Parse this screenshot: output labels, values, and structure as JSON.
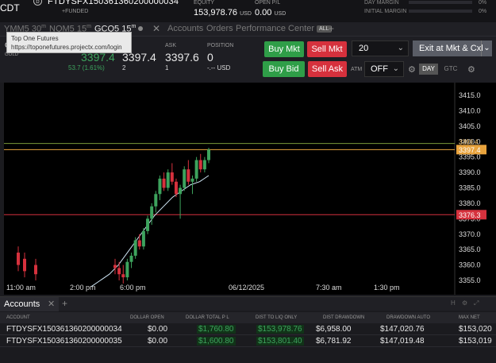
{
  "topbar": {
    "left_label": "CDT",
    "account_icon": "b",
    "account_name": "FTDYSFX150361360200000034",
    "funded_label": "+FUNDED",
    "equity_label": "EQUITY",
    "equity_value": "153,978.76",
    "equity_unit": "USD",
    "open_pl_label": "OPEN P/L",
    "open_pl_value": "0.00",
    "open_pl_unit": "USD",
    "day_margin_label": "DAY MARGIN",
    "day_margin_value": "0%",
    "initial_margin_label": "INITIAL MARGIN",
    "initial_margin_value": "0%"
  },
  "tabs": {
    "t1": "YMM5 30",
    "t1_sup": "m",
    "t2": "NQM5 15",
    "t2_sup": "m",
    "t3": "GCQ5 15",
    "t3_sup": "m",
    "close": "✕",
    "accounts": "Accounts",
    "orders": "Orders",
    "performance": "Performance Center",
    "all_badge": "ALL",
    "add": "+"
  },
  "tooltip": {
    "title": "Top One Futures",
    "url": "https://toponefutures.projectx.com/login"
  },
  "quote": {
    "symbol_short": "G",
    "symbol_sub": "GOLD",
    "last": "3397.4",
    "change": "53.7 (1.61%)",
    "bid": "3397.4",
    "bid_size": "2",
    "ask_label": "ASK",
    "ask": "3397.6",
    "ask_size": "1",
    "position_label": "POSITION",
    "position": "0",
    "position_sub": "-.-- USD"
  },
  "buttons": {
    "buy_mkt": "Buy Mkt",
    "sell_mkt": "Sell Mkt",
    "buy_bid": "Buy Bid",
    "sell_ask": "Sell Ask",
    "qty": "20",
    "exit": "Exit at Mkt & Cxl",
    "atm_label": "ATM",
    "atm_value": "OFF",
    "day": "DAY",
    "gtc": "GTC"
  },
  "chart_data": {
    "type": "candlestick",
    "title": "",
    "xlabel": "",
    "ylabel": "",
    "ylim": [
      3353,
      3420
    ],
    "y_ticks": [
      "3415.0",
      "3410.0",
      "3405.0",
      "3400.0",
      "3395.0",
      "3390.0",
      "3385.0",
      "3380.0",
      "3375.0",
      "3370.0",
      "3365.0",
      "3360.0",
      "3355.0"
    ],
    "x_ticks": [
      "11:00 am",
      "2:00 pm",
      "6:00 pm",
      "06/12/2025",
      "7:30 am",
      "1:30 pm"
    ],
    "price_tags": [
      {
        "value": 3397.4,
        "label": "3397.4",
        "color": "#e8a33d"
      },
      {
        "value": 3376.3,
        "label": "3376.3",
        "color": "#d6313d"
      }
    ],
    "hidden_tag": "3399.4",
    "moving_average": [
      3353,
      3355,
      3357,
      3360,
      3364,
      3368,
      3372,
      3376,
      3379,
      3382,
      3384,
      3386,
      3387,
      3389
    ],
    "candles": [
      [
        3360,
        3362,
        3357,
        3359
      ],
      [
        3359,
        3361,
        3355,
        3357
      ],
      [
        3357,
        3360,
        3354,
        3356
      ],
      [
        3356,
        3362,
        3355,
        3361
      ],
      [
        3361,
        3364,
        3359,
        3363
      ],
      [
        3363,
        3369,
        3362,
        3368
      ],
      [
        3368,
        3370,
        3365,
        3366
      ],
      [
        3366,
        3372,
        3365,
        3371
      ],
      [
        3371,
        3376,
        3370,
        3375
      ],
      [
        3375,
        3380,
        3373,
        3379
      ],
      [
        3379,
        3384,
        3377,
        3383
      ],
      [
        3383,
        3389,
        3381,
        3388
      ],
      [
        3388,
        3390,
        3384,
        3385
      ],
      [
        3385,
        3391,
        3384,
        3390
      ],
      [
        3390,
        3393,
        3386,
        3387
      ],
      [
        3387,
        3388,
        3382,
        3383
      ],
      [
        3383,
        3386,
        3375,
        3385
      ],
      [
        3385,
        3392,
        3384,
        3391
      ],
      [
        3391,
        3394,
        3386,
        3387
      ],
      [
        3387,
        3389,
        3383,
        3388
      ],
      [
        3388,
        3395,
        3387,
        3394
      ],
      [
        3394,
        3396,
        3390,
        3391
      ],
      [
        3391,
        3395,
        3390,
        3394
      ],
      [
        3394,
        3398,
        3393,
        3397.4
      ]
    ]
  },
  "accounts_panel": {
    "tab": "Accounts",
    "close": "✕",
    "add": "+",
    "controls": [
      "H",
      "⚙",
      "⤢"
    ],
    "columns": [
      "ACCOUNT",
      "DOLLAR OPEN",
      "DOLLAR TOTAL P L",
      "DIST TO LIQ ONLY",
      "DIST DRAWDOWN",
      "DRAWDOWN AUTO",
      "MAX NET"
    ],
    "rows": [
      {
        "account": "FTDYSFX150361360200000034",
        "open": "$0.00",
        "total_pl": "$1,760.80",
        "dist_liq": "$153,978.76",
        "dist_dd": "$6,958.00",
        "dd_auto": "$147,020.76",
        "max_net": "$153,020"
      },
      {
        "account": "FTDYSFX150361360200000035",
        "open": "$0.00",
        "total_pl": "$1,600.80",
        "dist_liq": "$153,801.40",
        "dist_dd": "$6,781.92",
        "dd_auto": "$147,019.48",
        "max_net": "$153,019"
      }
    ]
  }
}
